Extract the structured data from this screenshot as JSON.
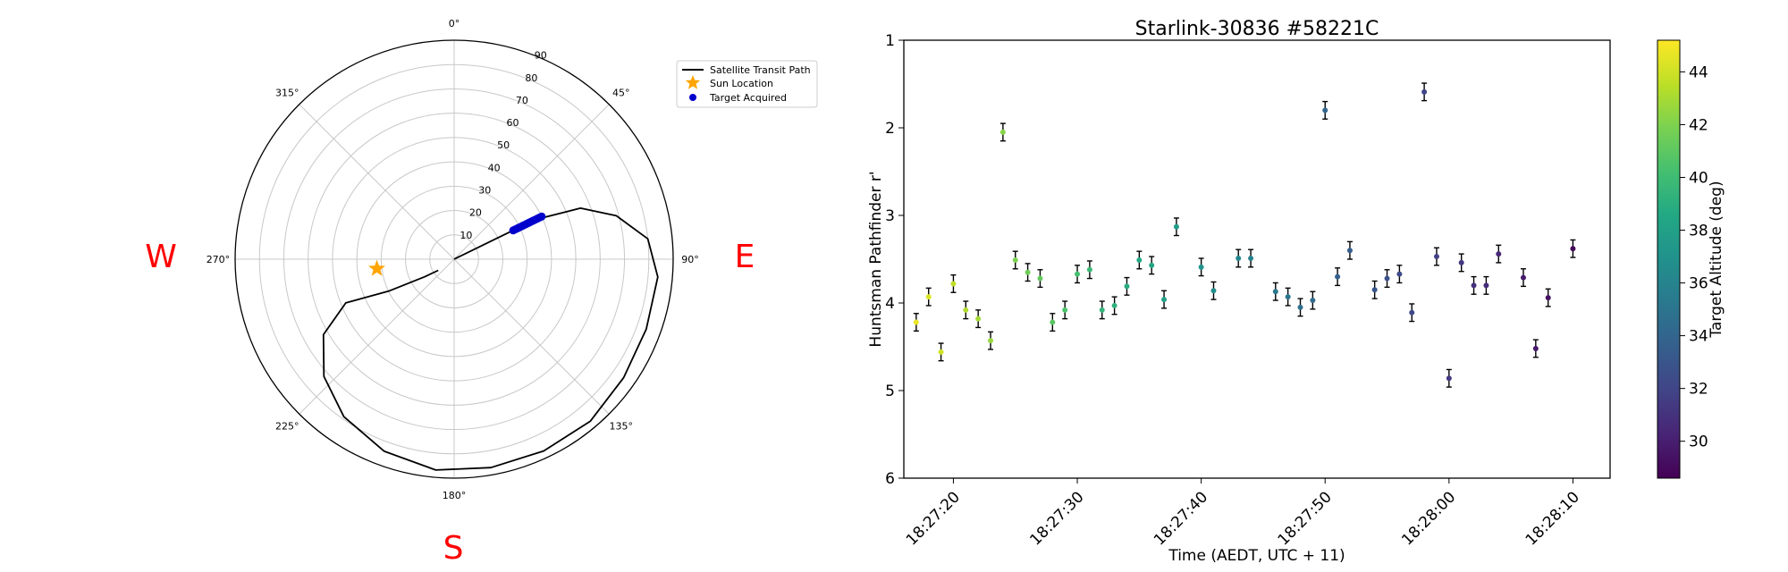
{
  "chart_data": [
    {
      "type": "polar",
      "title": "",
      "theta_zero": "N",
      "theta_direction": "clockwise",
      "angle_ticks": [
        "0°",
        "45°",
        "90°",
        "135°",
        "180°",
        "225°",
        "270°",
        "315°"
      ],
      "radial_ticks": [
        "10",
        "20",
        "30",
        "40",
        "50",
        "60",
        "70",
        "80",
        "90"
      ],
      "r_max": 90,
      "cardinal_labels": {
        "W": "W",
        "E": "E",
        "S": "S"
      },
      "legend": {
        "placement": "upper-right-outside",
        "entries": [
          "Satellite Transit Path",
          "Sun Location",
          "Target Acquired"
        ]
      },
      "series": [
        {
          "name": "Satellite Transit Path",
          "kind": "line",
          "color": "#000000",
          "points": [
            {
              "az": 64,
              "zen": 0
            },
            {
              "az": 64,
              "zen": 20
            },
            {
              "az": 64,
              "zen": 37
            },
            {
              "az": 68,
              "zen": 56
            },
            {
              "az": 75,
              "zen": 69
            },
            {
              "az": 84,
              "zen": 80
            },
            {
              "az": 95,
              "zen": 84
            },
            {
              "az": 110,
              "zen": 84
            },
            {
              "az": 125,
              "zen": 85
            },
            {
              "az": 140,
              "zen": 87
            },
            {
              "az": 155,
              "zen": 87
            },
            {
              "az": 170,
              "zen": 87
            },
            {
              "az": 185,
              "zen": 87
            },
            {
              "az": 200,
              "zen": 84
            },
            {
              "az": 215,
              "zen": 79
            },
            {
              "az": 228,
              "zen": 72
            },
            {
              "az": 240,
              "zen": 62
            },
            {
              "az": 248,
              "zen": 48
            },
            {
              "az": 244,
              "zen": 30
            },
            {
              "az": 239,
              "zen": 14
            },
            {
              "az": 235,
              "zen": 8
            }
          ]
        },
        {
          "name": "Sun Location",
          "kind": "marker",
          "marker": "star",
          "color": "#ffa500",
          "points": [
            {
              "az": 263,
              "zen": 32
            }
          ]
        },
        {
          "name": "Target Acquired",
          "kind": "scatter",
          "color": "#0000cc",
          "points": [
            {
              "az": 64,
              "zen": 27
            },
            {
              "az": 64,
              "zen": 28
            },
            {
              "az": 64,
              "zen": 29
            },
            {
              "az": 64,
              "zen": 30
            },
            {
              "az": 64,
              "zen": 31
            },
            {
              "az": 64,
              "zen": 32
            },
            {
              "az": 64,
              "zen": 33
            },
            {
              "az": 64,
              "zen": 34
            },
            {
              "az": 64,
              "zen": 35
            },
            {
              "az": 64,
              "zen": 36
            },
            {
              "az": 64,
              "zen": 37
            },
            {
              "az": 64,
              "zen": 38
            },
            {
              "az": 64,
              "zen": 39
            },
            {
              "az": 64,
              "zen": 40
            }
          ]
        }
      ]
    },
    {
      "type": "scatter",
      "title": "Starlink-30836 #58221C",
      "xlabel": "Time (AEDT, UTC + 11)",
      "ylabel": "Huntsman Pathfinder r'",
      "x_ticks": [
        "18:27:20",
        "18:27:30",
        "18:27:40",
        "18:27:50",
        "18:28:00",
        "18:28:10"
      ],
      "y_ticks": [
        "1",
        "2",
        "3",
        "4",
        "5",
        "6"
      ],
      "xlim": [
        "18:27:16",
        "18:28:13"
      ],
      "ylim": [
        1,
        6
      ],
      "y_inverted": true,
      "error_bars": true,
      "colorbar": {
        "label": "Target Altitude (deg)",
        "colormap": "viridis",
        "range": [
          28.6,
          45.2
        ],
        "ticks": [
          "30",
          "32",
          "34",
          "36",
          "38",
          "40",
          "42",
          "44"
        ]
      },
      "points": [
        {
          "t": "18:27:17",
          "y": 4.22,
          "err": 0.1,
          "alt": 44.7
        },
        {
          "t": "18:27:18",
          "y": 3.93,
          "err": 0.1,
          "alt": 44.3
        },
        {
          "t": "18:27:19",
          "y": 4.56,
          "err": 0.1,
          "alt": 44.0
        },
        {
          "t": "18:27:20",
          "y": 3.78,
          "err": 0.1,
          "alt": 43.6
        },
        {
          "t": "18:27:21",
          "y": 4.08,
          "err": 0.1,
          "alt": 43.2
        },
        {
          "t": "18:27:22",
          "y": 4.18,
          "err": 0.1,
          "alt": 42.9
        },
        {
          "t": "18:27:23",
          "y": 4.43,
          "err": 0.1,
          "alt": 42.6
        },
        {
          "t": "18:27:24",
          "y": 2.05,
          "err": 0.1,
          "alt": 42.2
        },
        {
          "t": "18:27:25",
          "y": 3.51,
          "err": 0.1,
          "alt": 41.9
        },
        {
          "t": "18:27:26",
          "y": 3.65,
          "err": 0.1,
          "alt": 41.5
        },
        {
          "t": "18:27:27",
          "y": 3.72,
          "err": 0.1,
          "alt": 41.2
        },
        {
          "t": "18:27:28",
          "y": 4.22,
          "err": 0.1,
          "alt": 40.9
        },
        {
          "t": "18:27:29",
          "y": 4.08,
          "err": 0.1,
          "alt": 40.5
        },
        {
          "t": "18:27:30",
          "y": 3.67,
          "err": 0.1,
          "alt": 40.2
        },
        {
          "t": "18:27:31",
          "y": 3.62,
          "err": 0.1,
          "alt": 39.8
        },
        {
          "t": "18:27:32",
          "y": 4.08,
          "err": 0.1,
          "alt": 39.5
        },
        {
          "t": "18:27:33",
          "y": 4.03,
          "err": 0.1,
          "alt": 39.2
        },
        {
          "t": "18:27:34",
          "y": 3.81,
          "err": 0.1,
          "alt": 38.9
        },
        {
          "t": "18:27:35",
          "y": 3.51,
          "err": 0.1,
          "alt": 38.6
        },
        {
          "t": "18:27:36",
          "y": 3.57,
          "err": 0.1,
          "alt": 38.3
        },
        {
          "t": "18:27:37",
          "y": 3.96,
          "err": 0.1,
          "alt": 38.0
        },
        {
          "t": "18:27:38",
          "y": 3.13,
          "err": 0.1,
          "alt": 37.7
        },
        {
          "t": "18:27:40",
          "y": 3.59,
          "err": 0.1,
          "alt": 37.1
        },
        {
          "t": "18:27:41",
          "y": 3.86,
          "err": 0.1,
          "alt": 36.8
        },
        {
          "t": "18:27:43",
          "y": 3.49,
          "err": 0.1,
          "alt": 36.2
        },
        {
          "t": "18:27:44",
          "y": 3.49,
          "err": 0.1,
          "alt": 35.9
        },
        {
          "t": "18:27:46",
          "y": 3.87,
          "err": 0.1,
          "alt": 35.3
        },
        {
          "t": "18:27:47",
          "y": 3.93,
          "err": 0.1,
          "alt": 35.0
        },
        {
          "t": "18:27:48",
          "y": 4.05,
          "err": 0.1,
          "alt": 34.7
        },
        {
          "t": "18:27:49",
          "y": 3.97,
          "err": 0.1,
          "alt": 34.4
        },
        {
          "t": "18:27:50",
          "y": 1.8,
          "err": 0.1,
          "alt": 34.1
        },
        {
          "t": "18:27:51",
          "y": 3.7,
          "err": 0.1,
          "alt": 33.8
        },
        {
          "t": "18:27:52",
          "y": 3.4,
          "err": 0.1,
          "alt": 33.5
        },
        {
          "t": "18:27:54",
          "y": 3.85,
          "err": 0.1,
          "alt": 33.0
        },
        {
          "t": "18:27:55",
          "y": 3.72,
          "err": 0.1,
          "alt": 32.7
        },
        {
          "t": "18:27:56",
          "y": 3.67,
          "err": 0.1,
          "alt": 32.4
        },
        {
          "t": "18:27:57",
          "y": 4.11,
          "err": 0.1,
          "alt": 32.2
        },
        {
          "t": "18:27:58",
          "y": 1.59,
          "err": 0.1,
          "alt": 31.9
        },
        {
          "t": "18:27:59",
          "y": 3.47,
          "err": 0.1,
          "alt": 31.7
        },
        {
          "t": "18:28:00",
          "y": 4.86,
          "err": 0.1,
          "alt": 31.4
        },
        {
          "t": "18:28:01",
          "y": 3.54,
          "err": 0.1,
          "alt": 31.2
        },
        {
          "t": "18:28:02",
          "y": 3.8,
          "err": 0.1,
          "alt": 30.9
        },
        {
          "t": "18:28:03",
          "y": 3.8,
          "err": 0.1,
          "alt": 30.7
        },
        {
          "t": "18:28:04",
          "y": 3.44,
          "err": 0.1,
          "alt": 30.4
        },
        {
          "t": "18:28:06",
          "y": 3.71,
          "err": 0.1,
          "alt": 29.9
        },
        {
          "t": "18:28:07",
          "y": 4.52,
          "err": 0.1,
          "alt": 29.7
        },
        {
          "t": "18:28:08",
          "y": 3.94,
          "err": 0.1,
          "alt": 29.5
        },
        {
          "t": "18:28:10",
          "y": 3.38,
          "err": 0.1,
          "alt": 29.0
        }
      ]
    }
  ]
}
